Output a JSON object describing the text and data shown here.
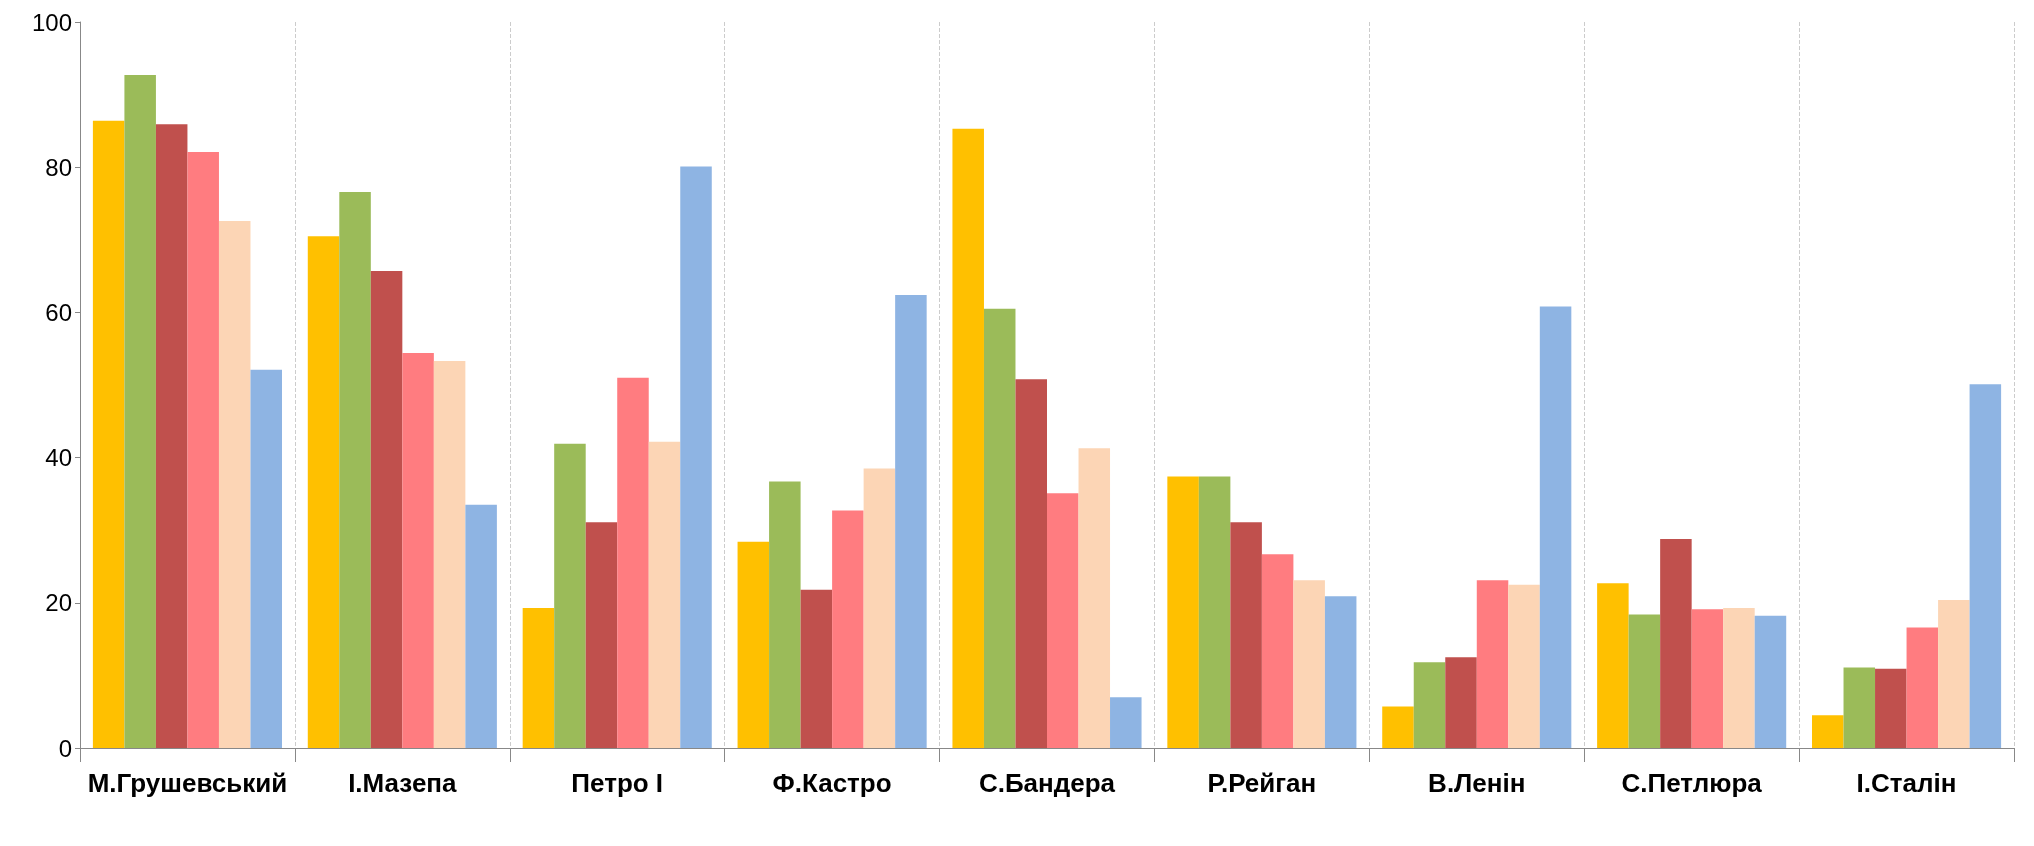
{
  "chart_data": {
    "type": "bar",
    "categories": [
      "М.Грушевський",
      "І.Мазепа",
      "Петро І",
      "Ф.Кастро",
      "С.Бандера",
      "Р.Рейган",
      "В.Ленін",
      "С.Петлюра",
      "І.Сталін"
    ],
    "series": [
      {
        "color": "#ffc000",
        "values": [
          86.4,
          70.5,
          19.3,
          28.4,
          85.3,
          37.4,
          5.7,
          22.7,
          4.5
        ]
      },
      {
        "color": "#9bbb59",
        "values": [
          92.7,
          76.6,
          41.9,
          36.7,
          60.5,
          37.4,
          11.8,
          18.4,
          11.1
        ]
      },
      {
        "color": "#c0504d",
        "values": [
          85.9,
          65.7,
          31.1,
          21.8,
          50.8,
          31.1,
          12.5,
          28.8,
          10.9
        ]
      },
      {
        "color": "#ff7c80",
        "values": [
          82.1,
          54.4,
          51.0,
          32.7,
          35.1,
          26.7,
          23.1,
          19.1,
          16.6
        ]
      },
      {
        "color": "#fcd5b5",
        "values": [
          72.6,
          53.3,
          42.2,
          38.5,
          41.3,
          23.1,
          22.5,
          19.3,
          20.4
        ]
      },
      {
        "color": "#8eb4e3",
        "values": [
          52.1,
          33.5,
          80.1,
          62.4,
          7.0,
          20.9,
          60.8,
          18.2,
          50.1
        ]
      }
    ],
    "ylim": [
      0,
      100
    ],
    "yticks": [
      0,
      20,
      40,
      60,
      80,
      100
    ],
    "grid": "x"
  }
}
